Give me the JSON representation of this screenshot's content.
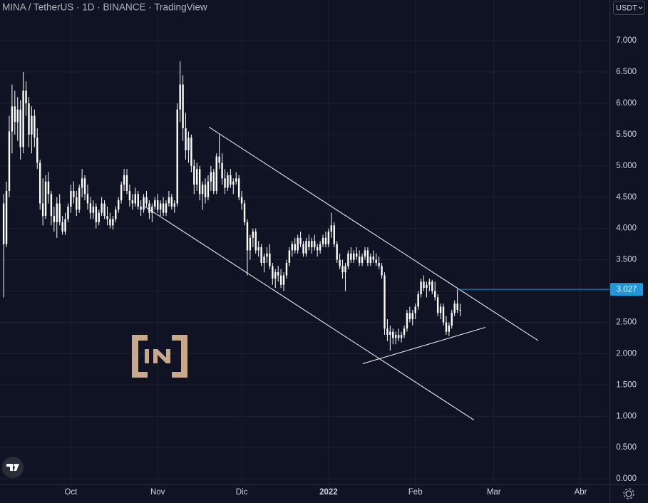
{
  "chart_data": {
    "type": "candlestick",
    "title": "MINA / TetherUS · 1D · BINANCE · TradingView",
    "currency": "USDT",
    "color": "#ffffff",
    "grid": true,
    "last_price": 3.027,
    "last_price_color": "#2196d8",
    "line_color": "#e8e8e8",
    "xlim": [
      -1.3,
      216.3
    ],
    "xticks": [
      {
        "value": 24,
        "label": "Oct"
      },
      {
        "value": 55,
        "label": "Nov"
      },
      {
        "value": 85,
        "label": "Dic"
      },
      {
        "value": 116,
        "label": "2022"
      },
      {
        "value": 147,
        "label": "Feb"
      },
      {
        "value": 175,
        "label": "Mar"
      },
      {
        "value": 206,
        "label": "Abr"
      }
    ],
    "ylim": [
      -0.09,
      7.65
    ],
    "yticks": [
      {
        "value": 0,
        "label": "0.000"
      },
      {
        "value": 0.5,
        "label": "0.500"
      },
      {
        "value": 1,
        "label": "1.000"
      },
      {
        "value": 1.5,
        "label": "1.500"
      },
      {
        "value": 2,
        "label": "2.000"
      },
      {
        "value": 2.5,
        "label": "2.500"
      },
      {
        "value": 3,
        "label": "3.000"
      },
      {
        "value": 3.5,
        "label": "3.500"
      },
      {
        "value": 4,
        "label": "4.000"
      },
      {
        "value": 4.5,
        "label": "4.500"
      },
      {
        "value": 5,
        "label": "5.000"
      },
      {
        "value": 5.5,
        "label": "5.500"
      },
      {
        "value": 6,
        "label": "6.000"
      },
      {
        "value": 6.5,
        "label": "6.500"
      },
      {
        "value": 7,
        "label": "7.000"
      }
    ],
    "trend_lines": [
      [
        [
          73.3,
          5.62
        ],
        [
          190.8,
          2.21
        ]
      ],
      [
        [
          50.4,
          4.35
        ],
        [
          167.9,
          0.94
        ]
      ],
      [
        [
          128.2,
          1.84
        ],
        [
          172.0,
          2.42
        ]
      ]
    ],
    "values": [
      [
        4.4,
        4.55,
        2.9,
        3.75
      ],
      [
        3.75,
        4.75,
        3.7,
        4.6
      ],
      [
        4.6,
        5.8,
        4.5,
        5.55
      ],
      [
        5.55,
        6.3,
        5.2,
        5.95
      ],
      [
        5.95,
        6.2,
        5.5,
        5.7
      ],
      [
        5.7,
        6.1,
        5.4,
        5.9
      ],
      [
        5.9,
        6.05,
        5.1,
        5.3
      ],
      [
        5.3,
        6.5,
        5.2,
        6.2
      ],
      [
        6.2,
        6.35,
        5.8,
        6.0
      ],
      [
        6.0,
        6.1,
        5.3,
        5.5
      ],
      [
        5.5,
        5.95,
        5.2,
        5.8
      ],
      [
        5.8,
        5.9,
        5.3,
        5.45
      ],
      [
        5.45,
        5.6,
        4.95,
        5.05
      ],
      [
        5.05,
        5.1,
        4.3,
        4.4
      ],
      [
        4.4,
        4.8,
        4.05,
        4.2
      ],
      [
        4.2,
        4.85,
        4.15,
        4.75
      ],
      [
        4.75,
        4.9,
        4.4,
        4.55
      ],
      [
        4.55,
        4.6,
        4.05,
        4.2
      ],
      [
        4.2,
        4.35,
        3.95,
        4.1
      ],
      [
        4.1,
        4.5,
        3.85,
        4.4
      ],
      [
        4.4,
        4.55,
        4.05,
        4.1
      ],
      [
        4.1,
        4.2,
        3.9,
        3.95
      ],
      [
        3.95,
        4.25,
        3.9,
        4.15
      ],
      [
        4.15,
        4.4,
        4.1,
        4.35
      ],
      [
        4.35,
        4.7,
        4.25,
        4.6
      ],
      [
        4.6,
        4.75,
        4.4,
        4.5
      ],
      [
        4.5,
        4.6,
        4.2,
        4.3
      ],
      [
        4.3,
        4.7,
        4.25,
        4.65
      ],
      [
        4.65,
        4.95,
        4.5,
        4.8
      ],
      [
        4.8,
        4.85,
        4.45,
        4.55
      ],
      [
        4.55,
        4.7,
        4.3,
        4.4
      ],
      [
        4.4,
        4.5,
        4.15,
        4.25
      ],
      [
        4.25,
        4.45,
        4.15,
        4.35
      ],
      [
        4.35,
        4.4,
        4.0,
        4.1
      ],
      [
        4.1,
        4.3,
        4.05,
        4.25
      ],
      [
        4.25,
        4.5,
        4.2,
        4.4
      ],
      [
        4.4,
        4.45,
        4.15,
        4.2
      ],
      [
        4.2,
        4.35,
        4.05,
        4.15
      ],
      [
        4.15,
        4.25,
        4.0,
        4.05
      ],
      [
        4.05,
        4.2,
        3.98,
        4.15
      ],
      [
        4.15,
        4.35,
        4.1,
        4.3
      ],
      [
        4.3,
        4.5,
        4.25,
        4.45
      ],
      [
        4.45,
        4.75,
        4.4,
        4.7
      ],
      [
        4.7,
        4.95,
        4.6,
        4.85
      ],
      [
        4.85,
        4.95,
        4.55,
        4.6
      ],
      [
        4.6,
        4.7,
        4.35,
        4.45
      ],
      [
        4.45,
        4.55,
        4.3,
        4.4
      ],
      [
        4.4,
        4.65,
        4.35,
        4.55
      ],
      [
        4.55,
        4.6,
        4.3,
        4.35
      ],
      [
        4.35,
        4.45,
        4.2,
        4.3
      ],
      [
        4.3,
        4.55,
        4.25,
        4.5
      ],
      [
        4.5,
        4.6,
        4.35,
        4.4
      ],
      [
        4.4,
        4.45,
        4.15,
        4.25
      ],
      [
        4.25,
        4.4,
        4.1,
        4.35
      ],
      [
        4.35,
        4.5,
        4.3,
        4.45
      ],
      [
        4.45,
        4.55,
        4.25,
        4.3
      ],
      [
        4.3,
        4.45,
        4.2,
        4.4
      ],
      [
        4.4,
        4.5,
        4.2,
        4.25
      ],
      [
        4.25,
        4.45,
        4.2,
        4.4
      ],
      [
        4.4,
        4.6,
        4.35,
        4.5
      ],
      [
        4.5,
        4.55,
        4.3,
        4.35
      ],
      [
        4.35,
        4.45,
        4.25,
        4.4
      ],
      [
        4.4,
        6.0,
        4.35,
        5.9
      ],
      [
        5.9,
        6.67,
        5.7,
        6.3
      ],
      [
        6.3,
        6.45,
        5.4,
        5.6
      ],
      [
        5.6,
        5.85,
        5.1,
        5.25
      ],
      [
        5.25,
        5.55,
        5.05,
        5.45
      ],
      [
        5.45,
        5.5,
        4.9,
        5.0
      ],
      [
        5.0,
        5.1,
        4.55,
        4.7
      ],
      [
        4.7,
        5.05,
        4.6,
        4.95
      ],
      [
        4.95,
        5.0,
        4.45,
        4.55
      ],
      [
        4.55,
        4.75,
        4.3,
        4.7
      ],
      [
        4.7,
        4.8,
        4.4,
        4.5
      ],
      [
        4.5,
        4.85,
        4.45,
        4.75
      ],
      [
        4.75,
        5.0,
        4.6,
        4.9
      ],
      [
        4.9,
        4.95,
        4.55,
        4.6
      ],
      [
        4.6,
        5.2,
        4.55,
        5.15
      ],
      [
        5.15,
        5.5,
        4.95,
        5.05
      ],
      [
        5.05,
        5.2,
        4.7,
        4.8
      ],
      [
        4.8,
        4.95,
        4.55,
        4.65
      ],
      [
        4.65,
        4.9,
        4.6,
        4.85
      ],
      [
        4.85,
        4.95,
        4.65,
        4.7
      ],
      [
        4.7,
        4.8,
        4.55,
        4.75
      ],
      [
        4.75,
        4.9,
        4.7,
        4.8
      ],
      [
        4.8,
        4.85,
        4.45,
        4.5
      ],
      [
        4.5,
        4.6,
        4.3,
        4.4
      ],
      [
        4.4,
        4.45,
        4.05,
        4.1
      ],
      [
        4.1,
        4.15,
        3.25,
        3.65
      ],
      [
        3.65,
        3.9,
        3.5,
        3.85
      ],
      [
        3.85,
        4.0,
        3.7,
        3.95
      ],
      [
        3.95,
        4.0,
        3.6,
        3.65
      ],
      [
        3.65,
        3.8,
        3.55,
        3.7
      ],
      [
        3.7,
        3.75,
        3.4,
        3.45
      ],
      [
        3.45,
        3.6,
        3.3,
        3.55
      ],
      [
        3.55,
        3.7,
        3.45,
        3.6
      ],
      [
        3.6,
        3.75,
        3.35,
        3.4
      ],
      [
        3.4,
        3.45,
        3.1,
        3.2
      ],
      [
        3.2,
        3.35,
        3.05,
        3.3
      ],
      [
        3.3,
        3.4,
        3.15,
        3.25
      ],
      [
        3.25,
        3.35,
        3.05,
        3.1
      ],
      [
        3.1,
        3.3,
        3.0,
        3.25
      ],
      [
        3.25,
        3.5,
        3.2,
        3.45
      ],
      [
        3.45,
        3.7,
        3.4,
        3.65
      ],
      [
        3.65,
        3.8,
        3.55,
        3.75
      ],
      [
        3.75,
        3.85,
        3.6,
        3.65
      ],
      [
        3.65,
        3.9,
        3.6,
        3.85
      ],
      [
        3.85,
        3.95,
        3.7,
        3.75
      ],
      [
        3.75,
        3.8,
        3.55,
        3.6
      ],
      [
        3.6,
        3.85,
        3.55,
        3.8
      ],
      [
        3.8,
        3.9,
        3.65,
        3.7
      ],
      [
        3.7,
        3.85,
        3.6,
        3.8
      ],
      [
        3.8,
        3.9,
        3.65,
        3.7
      ],
      [
        3.7,
        3.75,
        3.55,
        3.65
      ],
      [
        3.65,
        3.8,
        3.6,
        3.75
      ],
      [
        3.75,
        3.9,
        3.7,
        3.85
      ],
      [
        3.85,
        3.95,
        3.7,
        3.75
      ],
      [
        3.75,
        4.0,
        3.7,
        3.95
      ],
      [
        3.95,
        4.25,
        3.85,
        4.05
      ],
      [
        4.05,
        4.1,
        3.7,
        3.75
      ],
      [
        3.75,
        3.8,
        3.45,
        3.5
      ],
      [
        3.5,
        3.6,
        3.35,
        3.4
      ],
      [
        3.4,
        3.5,
        3.2,
        3.3
      ],
      [
        3.3,
        3.45,
        3.0,
        3.4
      ],
      [
        3.4,
        3.65,
        3.35,
        3.6
      ],
      [
        3.6,
        3.7,
        3.45,
        3.5
      ],
      [
        3.5,
        3.65,
        3.45,
        3.6
      ],
      [
        3.6,
        3.7,
        3.5,
        3.55
      ],
      [
        3.55,
        3.65,
        3.4,
        3.45
      ],
      [
        3.45,
        3.6,
        3.4,
        3.55
      ],
      [
        3.55,
        3.7,
        3.5,
        3.65
      ],
      [
        3.65,
        3.7,
        3.4,
        3.45
      ],
      [
        3.45,
        3.6,
        3.4,
        3.55
      ],
      [
        3.55,
        3.65,
        3.45,
        3.5
      ],
      [
        3.5,
        3.6,
        3.4,
        3.45
      ],
      [
        3.45,
        3.55,
        3.35,
        3.4
      ],
      [
        3.4,
        3.45,
        3.2,
        3.25
      ],
      [
        3.25,
        3.3,
        2.3,
        2.4
      ],
      [
        2.4,
        2.55,
        2.2,
        2.3
      ],
      [
        2.3,
        2.45,
        2.05,
        2.35
      ],
      [
        2.35,
        2.4,
        2.15,
        2.25
      ],
      [
        2.25,
        2.35,
        2.15,
        2.3
      ],
      [
        2.3,
        2.4,
        2.2,
        2.25
      ],
      [
        2.25,
        2.35,
        2.18,
        2.3
      ],
      [
        2.3,
        2.45,
        2.25,
        2.4
      ],
      [
        2.4,
        2.7,
        2.35,
        2.65
      ],
      [
        2.65,
        2.75,
        2.5,
        2.55
      ],
      [
        2.55,
        2.7,
        2.45,
        2.65
      ],
      [
        2.65,
        2.8,
        2.55,
        2.75
      ],
      [
        2.75,
        3.0,
        2.7,
        2.95
      ],
      [
        2.95,
        3.2,
        2.9,
        3.15
      ],
      [
        3.15,
        3.25,
        3.0,
        3.05
      ],
      [
        3.05,
        3.15,
        2.9,
        3.1
      ],
      [
        3.1,
        3.2,
        3.0,
        3.15
      ],
      [
        3.15,
        3.18,
        2.95,
        3.0
      ],
      [
        3.0,
        3.15,
        2.85,
        2.9
      ],
      [
        2.9,
        2.95,
        2.6,
        2.65
      ],
      [
        2.65,
        2.8,
        2.55,
        2.75
      ],
      [
        2.75,
        2.8,
        2.45,
        2.5
      ],
      [
        2.5,
        2.6,
        2.3,
        2.35
      ],
      [
        2.35,
        2.5,
        2.28,
        2.45
      ],
      [
        2.45,
        2.7,
        2.4,
        2.65
      ],
      [
        2.65,
        2.85,
        2.6,
        2.8
      ],
      [
        2.8,
        3.03,
        2.65,
        2.7
      ],
      [
        2.7,
        2.8,
        2.6,
        2.7
      ]
    ]
  }
}
